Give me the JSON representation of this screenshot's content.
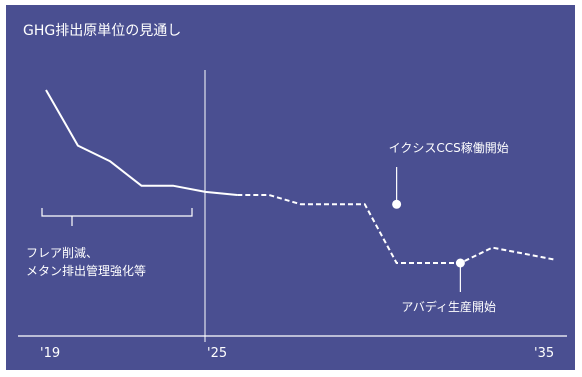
{
  "chart_data": {
    "type": "line",
    "title": "GHG排出原単位の見通し",
    "xlabel": "",
    "ylabel": "",
    "x_ticks": [
      "'19",
      "'25",
      "'35"
    ],
    "series": [
      {
        "style": "solid",
        "x": [
          2019,
          2020,
          2021,
          2022,
          2023,
          2024,
          2025
        ],
        "y": [
          100,
          82,
          77,
          69,
          69,
          67,
          66
        ]
      },
      {
        "style": "dashed",
        "x": [
          2025,
          2026,
          2027,
          2028,
          2029,
          2030,
          2031,
          2032,
          2033,
          2034,
          2035
        ],
        "y": [
          66,
          66,
          63,
          63,
          63,
          44,
          44,
          44,
          49,
          47,
          45
        ]
      }
    ],
    "annotations": [
      {
        "label": "イクシスCCS稼働開始",
        "x": 2030,
        "y": 63
      },
      {
        "label": "アバディ生産開始",
        "x": 2032,
        "y": 44
      },
      {
        "label": "フレア削減、\nメタン排出管理強化等",
        "x_range": [
          2019,
          2024
        ]
      }
    ],
    "colors": {
      "background": "#4a4f91",
      "foreground": "#ffffff"
    }
  }
}
